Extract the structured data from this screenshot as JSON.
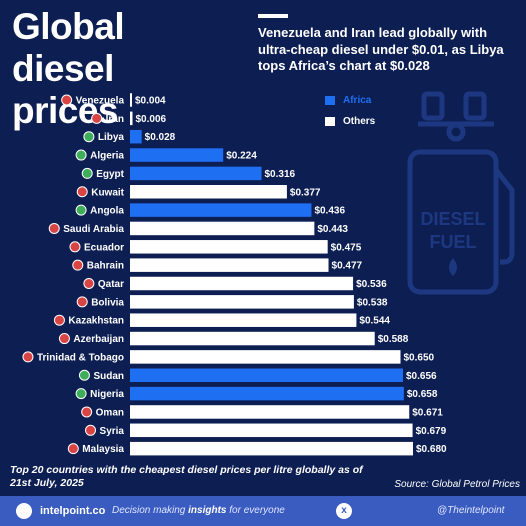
{
  "title": "Global diesel prices",
  "subtitle": "Venezuela and Iran lead globally with ultra-cheap diesel under $0.01, as Libya tops Africa’s chart at $0.028",
  "legend": {
    "africa": "Africa",
    "others": "Others"
  },
  "colors": {
    "background": "#0d1e52",
    "africa": "#1f6ff2",
    "others": "#ffffff",
    "label": "#ffffff"
  },
  "illustration_text": {
    "line1": "DIESEL",
    "line2": "FUEL"
  },
  "chart_data": {
    "type": "bar",
    "orientation": "horizontal",
    "title": "Global diesel prices",
    "categories": [
      "Venezuela",
      "Iran",
      "Libya",
      "Algeria",
      "Egypt",
      "Kuwait",
      "Angola",
      "Saudi Arabia",
      "Ecuador",
      "Bahrain",
      "Qatar",
      "Bolivia",
      "Kazakhstan",
      "Azerbaijan",
      "Trinidad & Tobago",
      "Sudan",
      "Nigeria",
      "Oman",
      "Syria",
      "Malaysia"
    ],
    "values": [
      0.004,
      0.006,
      0.028,
      0.224,
      0.316,
      0.377,
      0.436,
      0.443,
      0.475,
      0.477,
      0.536,
      0.538,
      0.544,
      0.588,
      0.65,
      0.656,
      0.658,
      0.671,
      0.679,
      0.68
    ],
    "value_labels": [
      "$0.004",
      "$0.006",
      "$0.028",
      "$0.224",
      "$0.316",
      "$0.377",
      "$0.436",
      "$0.443",
      "$0.475",
      "$0.477",
      "$0.536",
      "$0.538",
      "$0.544",
      "$0.588",
      "$0.650",
      "$0.656",
      "$0.658",
      "$0.671",
      "$0.679",
      "$0.680"
    ],
    "region": [
      "Others",
      "Others",
      "Africa",
      "Africa",
      "Africa",
      "Others",
      "Africa",
      "Others",
      "Others",
      "Others",
      "Others",
      "Others",
      "Others",
      "Others",
      "Others",
      "Africa",
      "Africa",
      "Others",
      "Others",
      "Others"
    ],
    "xlim": [
      0,
      0.68
    ],
    "legend_position": "top-right"
  },
  "footer": {
    "note": "Top 20 countries with the cheapest diesel prices per litre globally as of 21st July, 2025",
    "source": "Source: Global Petrol Prices",
    "brand": "intelpoint.co",
    "tagline_pre": "Decision making ",
    "tagline_bold": "insights",
    "tagline_post": " for everyone",
    "x_icon": "x",
    "handle": "@Theintelpoint"
  }
}
